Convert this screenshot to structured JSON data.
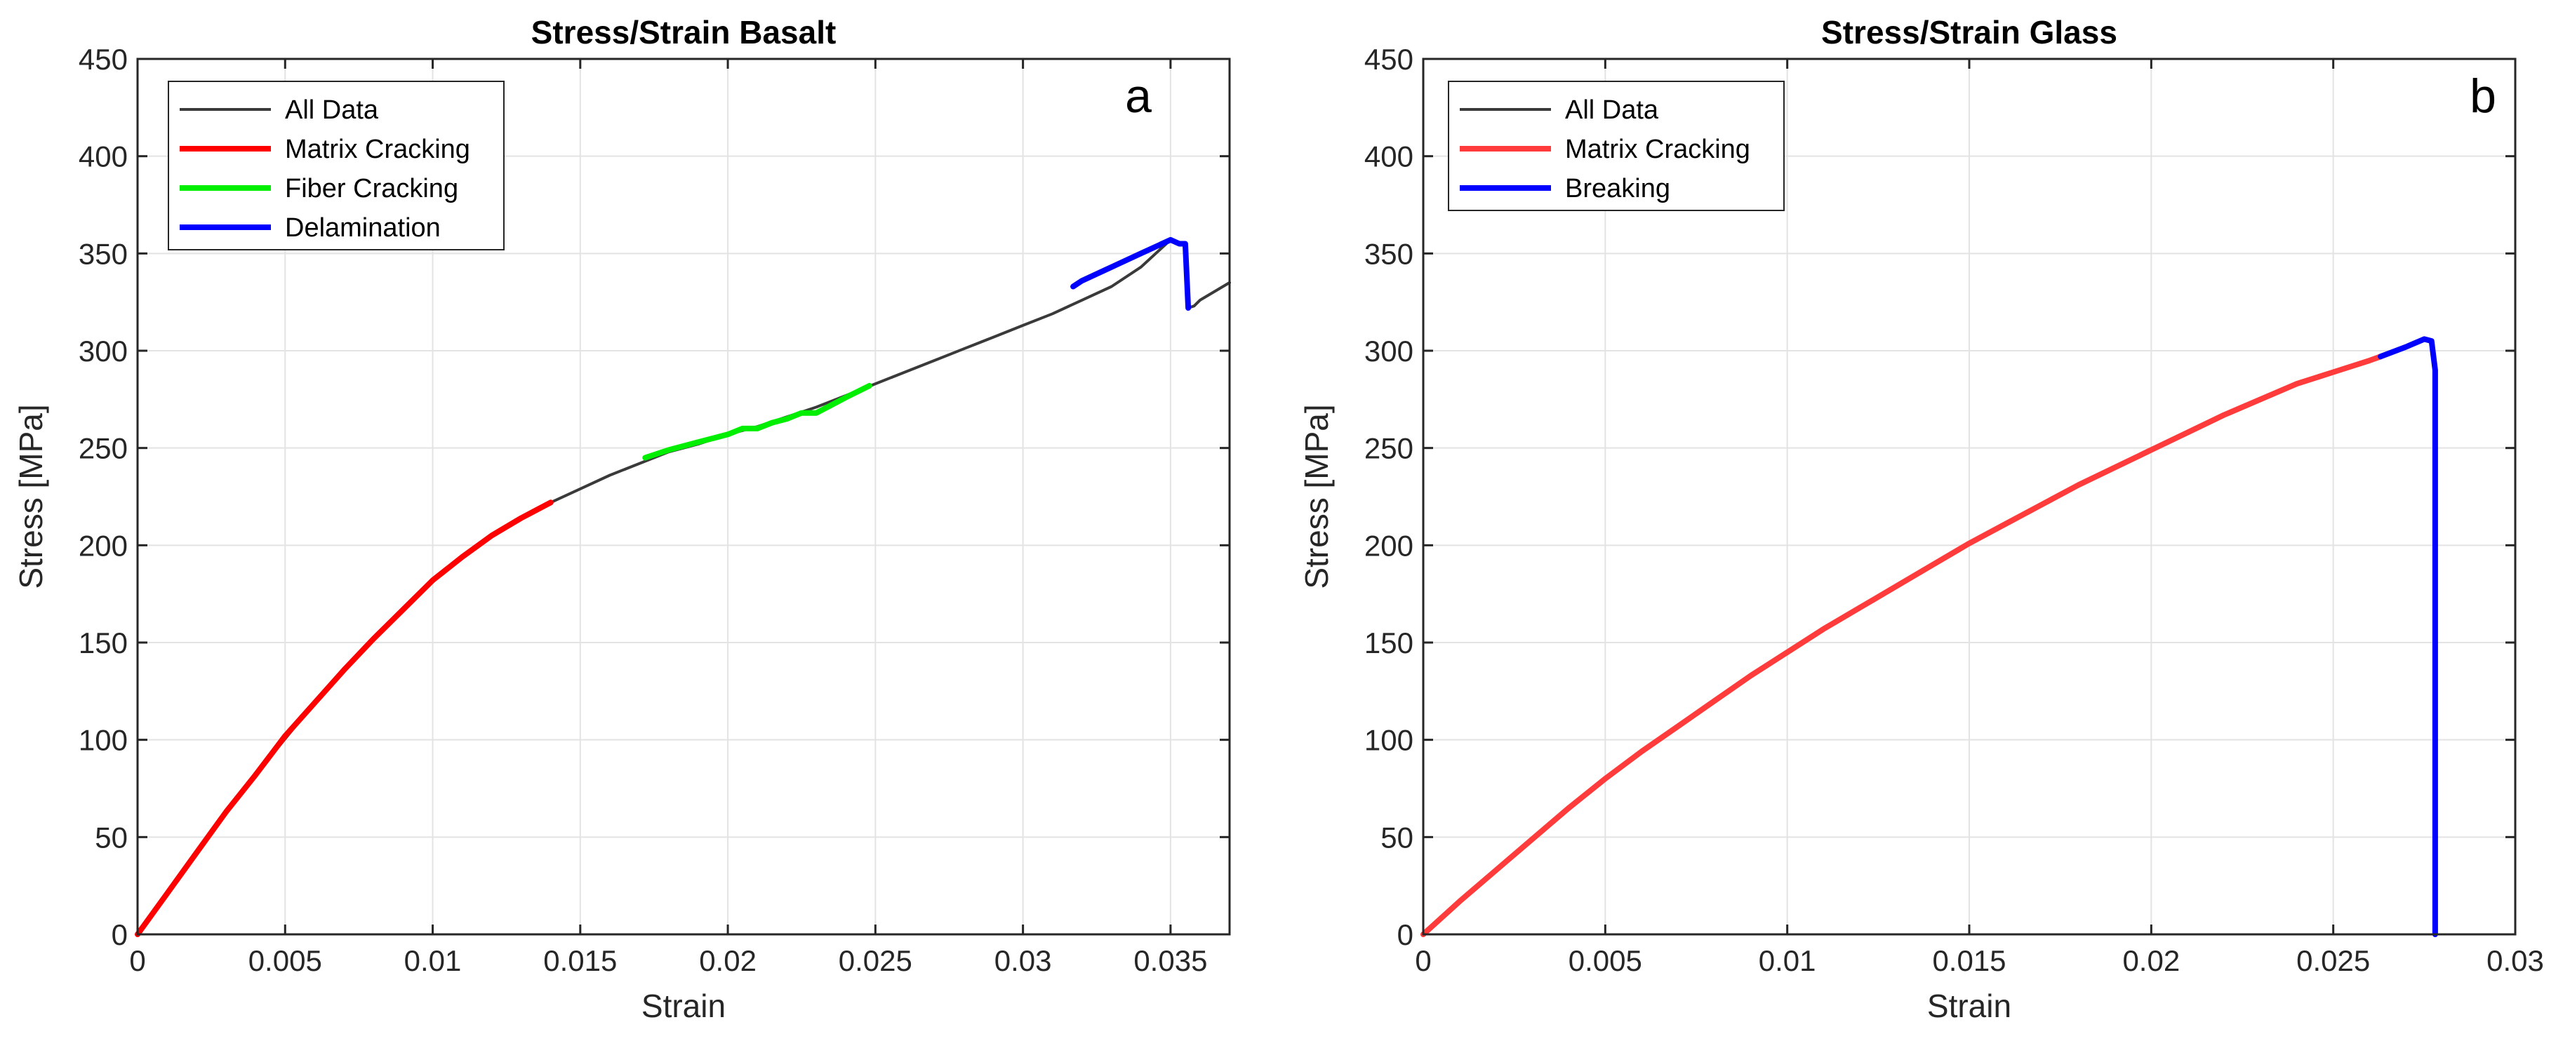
{
  "chart_data": [
    {
      "type": "line",
      "panel_letter": "a",
      "title": "Stress/Strain Basalt",
      "xlabel": "Strain",
      "ylabel": "Stress [MPa]",
      "xlim": [
        0,
        0.037
      ],
      "ylim": [
        0,
        450
      ],
      "xticks": [
        0,
        0.005,
        0.01,
        0.015,
        0.02,
        0.025,
        0.03,
        0.035
      ],
      "xtick_labels": [
        "0",
        "0.005",
        "0.01",
        "0.015",
        "0.02",
        "0.025",
        "0.03",
        "0.035"
      ],
      "yticks": [
        0,
        50,
        100,
        150,
        200,
        250,
        300,
        350,
        400,
        450
      ],
      "ytick_labels": [
        "0",
        "50",
        "100",
        "150",
        "200",
        "250",
        "300",
        "350",
        "400",
        "450"
      ],
      "grid": true,
      "legend_position": "top-left",
      "series": [
        {
          "name": "All Data",
          "color": "#3a3a3a",
          "x": [
            0,
            0.002,
            0.004,
            0.006,
            0.008,
            0.01,
            0.012,
            0.014,
            0.015,
            0.016,
            0.017,
            0.018,
            0.019,
            0.02,
            0.021,
            0.022,
            0.023,
            0.024,
            0.025,
            0.026,
            0.027,
            0.028,
            0.029,
            0.03,
            0.031,
            0.032,
            0.033,
            0.034,
            0.035,
            0.0353,
            0.0355,
            0.0356,
            0.0358,
            0.036,
            0.037
          ],
          "y": [
            0,
            42,
            82,
            119,
            152,
            182,
            205,
            222,
            229,
            236,
            242,
            248,
            252,
            257,
            261,
            266,
            271,
            277,
            283,
            289,
            295,
            301,
            307,
            313,
            319,
            326,
            333,
            343,
            357,
            355,
            355,
            322,
            323,
            326,
            335
          ]
        },
        {
          "name": "Matrix Cracking",
          "color": "#ff0000",
          "x": [
            0,
            0.001,
            0.002,
            0.003,
            0.004,
            0.005,
            0.006,
            0.007,
            0.008,
            0.009,
            0.01,
            0.011,
            0.012,
            0.013,
            0.014
          ],
          "y": [
            0,
            21,
            42,
            63,
            82,
            102,
            119,
            136,
            152,
            167,
            182,
            194,
            205,
            214,
            222
          ]
        },
        {
          "name": "Fiber Cracking",
          "color": "#00ee00",
          "x": [
            0.0172,
            0.018,
            0.019,
            0.02,
            0.0205,
            0.021,
            0.0215,
            0.022,
            0.0225,
            0.023,
            0.0235,
            0.024,
            0.0248
          ],
          "y": [
            245,
            249,
            253,
            257,
            260,
            260,
            263,
            265,
            268,
            268,
            272,
            276,
            282
          ]
        },
        {
          "name": "Delamination",
          "color": "#0000ff",
          "x": [
            0.0317,
            0.032,
            0.033,
            0.034,
            0.035,
            0.0353,
            0.0355,
            0.0356
          ],
          "y": [
            333,
            336,
            343,
            350,
            357,
            355,
            355,
            322
          ]
        }
      ]
    },
    {
      "type": "line",
      "panel_letter": "b",
      "title": "Stress/Strain Glass",
      "xlabel": "Strain",
      "ylabel": "Stress [MPa]",
      "xlim": [
        0,
        0.03
      ],
      "ylim": [
        0,
        450
      ],
      "xticks": [
        0,
        0.005,
        0.01,
        0.015,
        0.02,
        0.025,
        0.03
      ],
      "xtick_labels": [
        "0",
        "0.005",
        "0.01",
        "0.015",
        "0.02",
        "0.025",
        "0.03"
      ],
      "yticks": [
        0,
        50,
        100,
        150,
        200,
        250,
        300,
        350,
        400,
        450
      ],
      "ytick_labels": [
        "0",
        "50",
        "100",
        "150",
        "200",
        "250",
        "300",
        "350",
        "400",
        "450"
      ],
      "grid": true,
      "legend_position": "top-left",
      "series": [
        {
          "name": "All Data",
          "color": "#3a3a3a",
          "x": [
            0,
            0.002,
            0.004,
            0.006,
            0.008,
            0.01,
            0.012,
            0.014,
            0.016,
            0.018,
            0.02,
            0.022,
            0.024,
            0.026,
            0.0263,
            0.027,
            0.0275,
            0.0277,
            0.0278,
            0.0278
          ],
          "y": [
            0,
            33,
            65,
            94,
            120,
            145,
            168,
            190,
            211,
            231,
            249,
            267,
            283,
            295,
            297,
            302,
            306,
            305,
            290,
            0
          ]
        },
        {
          "name": "Matrix Cracking",
          "color": "#ff3b3b",
          "x": [
            0,
            0.001,
            0.002,
            0.003,
            0.004,
            0.005,
            0.006,
            0.007,
            0.008,
            0.009,
            0.01,
            0.011,
            0.012,
            0.013,
            0.014,
            0.015,
            0.016,
            0.017,
            0.018,
            0.019,
            0.02,
            0.021,
            0.022,
            0.023,
            0.024,
            0.025,
            0.026,
            0.0263
          ],
          "y": [
            0,
            17,
            33,
            49,
            65,
            80,
            94,
            107,
            120,
            133,
            145,
            157,
            168,
            179,
            190,
            201,
            211,
            221,
            231,
            240,
            249,
            258,
            267,
            275,
            283,
            289,
            295,
            297
          ]
        },
        {
          "name": "Breaking",
          "color": "#0000ff",
          "x": [
            0.0263,
            0.027,
            0.0275,
            0.0277,
            0.0278,
            0.0278
          ],
          "y": [
            297,
            302,
            306,
            305,
            290,
            0
          ]
        }
      ]
    }
  ]
}
